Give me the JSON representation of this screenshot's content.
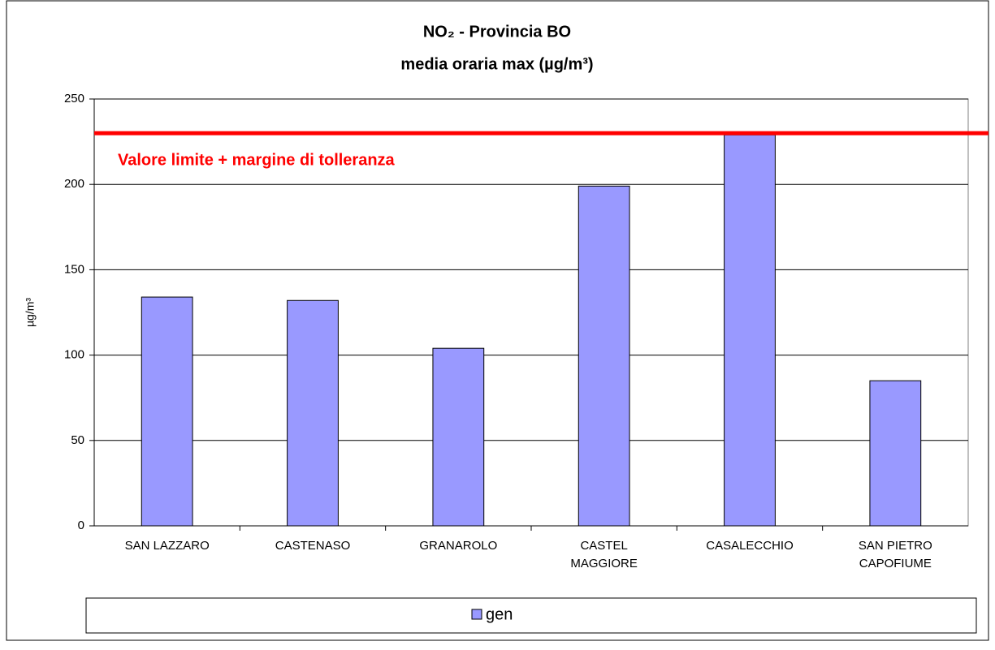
{
  "chart_data": {
    "type": "bar",
    "title": "NO₂ - Provincia BO",
    "subtitle": "media oraria max (µg/m³)",
    "y_label": "µg/m³",
    "categories": [
      "SAN LAZZARO",
      "CASTENASO",
      "GRANAROLO",
      "CASTEL\nMAGGIORE",
      "CASALECCHIO",
      "SAN PIETRO\nCAPOFIUME"
    ],
    "series": [
      {
        "name": "gen",
        "color": "#9999ff",
        "values": [
          134,
          132,
          104,
          199,
          229,
          85
        ]
      }
    ],
    "ylim": [
      0,
      250
    ],
    "yticks": [
      0,
      50,
      100,
      150,
      200,
      250
    ],
    "grid": true,
    "threshold": {
      "value": 230,
      "label": "Valore limite + margine di tolleranza",
      "color": "#ff0000"
    },
    "legend": "bottom"
  }
}
